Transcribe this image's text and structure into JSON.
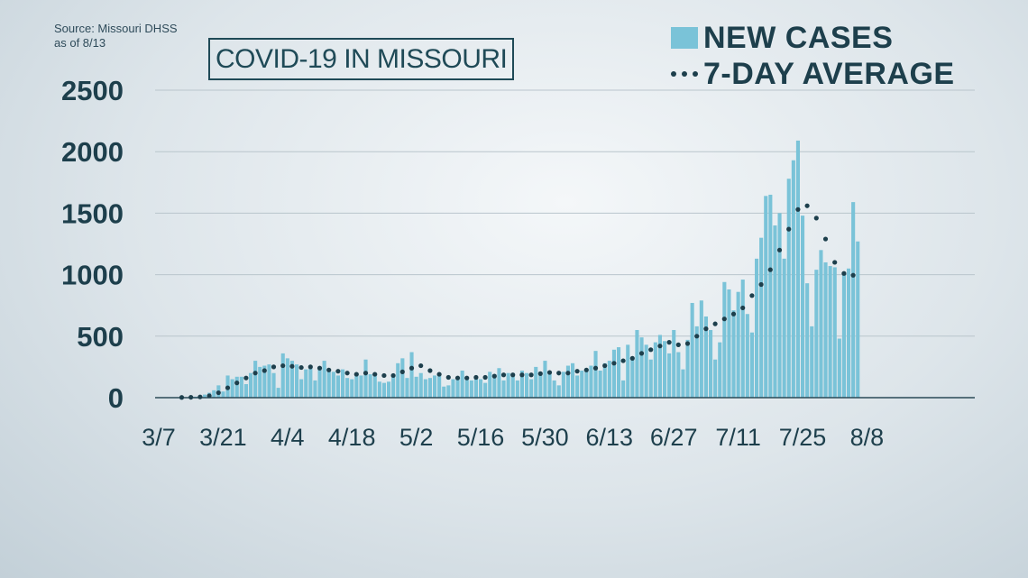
{
  "source": {
    "line1": "Source: Missouri DHSS",
    "line2": "as of 8/13"
  },
  "chart_data": {
    "type": "bar",
    "title": "COVID-19 IN MISSOURI",
    "xlabel": "",
    "ylabel": "",
    "ylim": [
      0,
      2500
    ],
    "yticks": [
      0,
      500,
      1000,
      1500,
      2000,
      2500
    ],
    "xtick_labels": [
      "3/7",
      "3/21",
      "4/4",
      "4/18",
      "5/2",
      "5/16",
      "5/30",
      "6/13",
      "6/27",
      "7/11",
      "7/25",
      "8/8"
    ],
    "grid": true,
    "legend_position": "top-right",
    "start_date": "2020-03-07",
    "colors": {
      "bars": "#7ac3d8",
      "average": "#1d3f4c",
      "grid": "#b9c5cc",
      "axis": "#2a4a57"
    },
    "series": [
      {
        "name": "NEW CASES",
        "style": "bar",
        "values": [
          0,
          0,
          0,
          0,
          0,
          2,
          2,
          5,
          8,
          15,
          25,
          40,
          60,
          100,
          50,
          180,
          150,
          170,
          170,
          110,
          200,
          300,
          250,
          260,
          270,
          200,
          80,
          360,
          320,
          300,
          270,
          150,
          230,
          260,
          140,
          250,
          300,
          220,
          210,
          180,
          230,
          160,
          150,
          200,
          180,
          310,
          190,
          180,
          130,
          120,
          130,
          170,
          280,
          320,
          160,
          370,
          170,
          200,
          150,
          160,
          180,
          180,
          90,
          100,
          150,
          170,
          220,
          150,
          140,
          170,
          150,
          120,
          210,
          190,
          240,
          140,
          200,
          200,
          140,
          220,
          200,
          150,
          250,
          210,
          300,
          200,
          140,
          100,
          210,
          260,
          280,
          180,
          220,
          230,
          260,
          380,
          220,
          280,
          300,
          390,
          410,
          140,
          430,
          310,
          550,
          490,
          430,
          310,
          450,
          510,
          460,
          360,
          550,
          370,
          230,
          470,
          770,
          580,
          790,
          660,
          550,
          310,
          450,
          940,
          880,
          710,
          860,
          960,
          680,
          530,
          1130,
          1300,
          1640,
          1650,
          1400,
          1500,
          1130,
          1780,
          1930,
          2090,
          1480,
          930,
          580,
          1040,
          1200,
          1100,
          1070,
          1060,
          480,
          1000,
          1050,
          1590,
          1270
        ]
      },
      {
        "name": "7-DAY AVERAGE",
        "style": "dotted-line",
        "values": [
          null,
          null,
          null,
          null,
          null,
          2,
          2,
          3,
          4,
          6,
          10,
          15,
          25,
          40,
          60,
          80,
          100,
          120,
          140,
          160,
          180,
          200,
          210,
          220,
          230,
          250,
          260,
          260,
          260,
          255,
          250,
          245,
          245,
          250,
          245,
          240,
          230,
          225,
          215,
          215,
          210,
          200,
          190,
          190,
          195,
          200,
          195,
          190,
          185,
          180,
          175,
          180,
          190,
          210,
          230,
          240,
          250,
          260,
          240,
          220,
          200,
          190,
          175,
          165,
          160,
          160,
          160,
          160,
          160,
          165,
          165,
          165,
          170,
          175,
          180,
          185,
          185,
          185,
          185,
          185,
          185,
          185,
          190,
          195,
          200,
          205,
          205,
          200,
          200,
          200,
          210,
          215,
          220,
          225,
          230,
          240,
          250,
          260,
          270,
          280,
          290,
          300,
          310,
          320,
          340,
          360,
          380,
          390,
          400,
          420,
          440,
          450,
          440,
          430,
          420,
          440,
          470,
          500,
          530,
          560,
          590,
          600,
          620,
          640,
          660,
          680,
          700,
          730,
          780,
          830,
          870,
          920,
          980,
          1040,
          1110,
          1200,
          1280,
          1370,
          1450,
          1530,
          1575,
          1560,
          1520,
          1460,
          1380,
          1290,
          1190,
          1100,
          1040,
          1010,
          1000,
          995,
          990
        ]
      }
    ]
  }
}
